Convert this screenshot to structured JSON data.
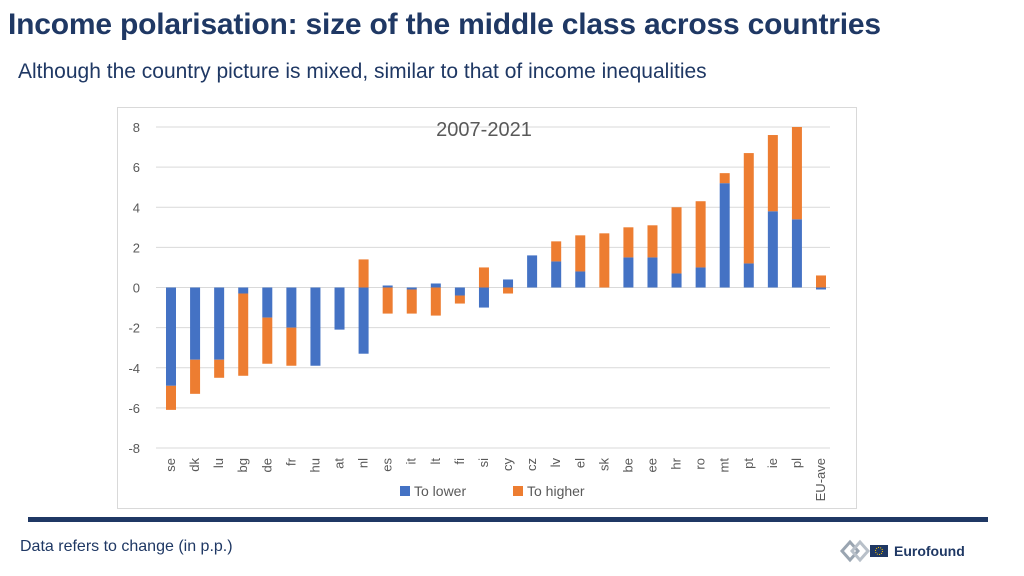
{
  "slide": {
    "title": "Income polarisation: size of the middle class across countries",
    "subtitle": "Although the country picture is mixed, similar to that of income inequalities",
    "footnote": "Data refers to change (in p.p.)",
    "logo_text": "Eurofound"
  },
  "colors": {
    "title": "#1f3864",
    "to_lower": "#4472c4",
    "to_higher": "#ed7d31",
    "gridline": "#d9d9d9",
    "tick_text": "#595959"
  },
  "chart_data": {
    "type": "bar",
    "stacked": true,
    "title": "2007-2021",
    "xlabel": "",
    "ylabel": "",
    "ylim": [
      -8,
      8
    ],
    "yticks": [
      -8,
      -6,
      -4,
      -2,
      0,
      2,
      4,
      6,
      8
    ],
    "grid": true,
    "legend_position": "bottom",
    "categories": [
      "se",
      "dk",
      "lu",
      "bg",
      "de",
      "fr",
      "hu",
      "at",
      "nl",
      "es",
      "it",
      "lt",
      "fi",
      "si",
      "cy",
      "cz",
      "lv",
      "el",
      "sk",
      "be",
      "ee",
      "hr",
      "ro",
      "mt",
      "pt",
      "ie",
      "pl",
      "EU-ave"
    ],
    "series": [
      {
        "name": "To lower",
        "values": [
          -4.9,
          -3.6,
          -3.6,
          -0.3,
          -1.5,
          -2.0,
          -3.9,
          -2.1,
          -3.3,
          0.1,
          -0.1,
          0.2,
          -0.4,
          -1.0,
          0.4,
          1.6,
          1.3,
          0.8,
          0.0,
          1.5,
          1.5,
          0.7,
          1.0,
          5.2,
          1.2,
          3.8,
          3.4,
          -0.1
        ]
      },
      {
        "name": "To higher",
        "values": [
          -1.2,
          -1.7,
          -0.9,
          -4.1,
          -2.3,
          -1.9,
          0.0,
          0.0,
          1.4,
          -1.3,
          -1.2,
          -1.4,
          -0.4,
          1.0,
          -0.3,
          0.0,
          1.0,
          1.8,
          2.7,
          1.5,
          1.6,
          3.3,
          3.3,
          0.5,
          5.5,
          3.8,
          4.6,
          0.6
        ]
      }
    ]
  }
}
